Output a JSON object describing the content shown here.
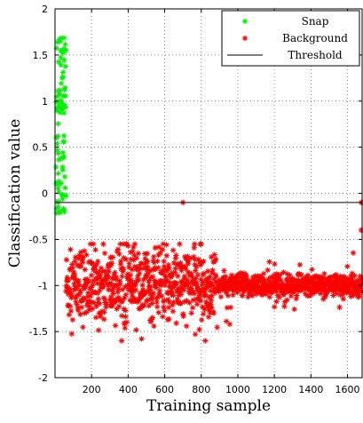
{
  "chart_data": {
    "type": "scatter",
    "xlabel": "Training sample",
    "ylabel": "Classification value",
    "xlim": [
      0,
      1680
    ],
    "ylim": [
      -2,
      2
    ],
    "xticks": [
      200,
      400,
      600,
      800,
      1000,
      1200,
      1400,
      1600
    ],
    "yticks": [
      -2,
      -1.5,
      -1,
      -0.5,
      0,
      0.5,
      1,
      1.5,
      2
    ],
    "grid": true,
    "legend_position": "top-right",
    "threshold": -0.1,
    "series": [
      {
        "name": "Snap",
        "color": "#00ee00",
        "marker": "*",
        "x_range": [
          5,
          60
        ],
        "y_distribution": "spread between -0.22 and 1.7"
      },
      {
        "name": "Background",
        "color": "#ff0000",
        "marker": "*",
        "x_range": [
          60,
          1680
        ],
        "y_center": -1.0,
        "y_spread_before_880": 0.2,
        "y_spread_after_880": 0.06,
        "outliers": [
          [
            700,
            -0.1
          ],
          [
            1675,
            -0.1
          ],
          [
            1675,
            -0.4
          ]
        ]
      },
      {
        "name": "Threshold",
        "color": "#000000",
        "type": "line",
        "y": -0.1
      }
    ]
  }
}
